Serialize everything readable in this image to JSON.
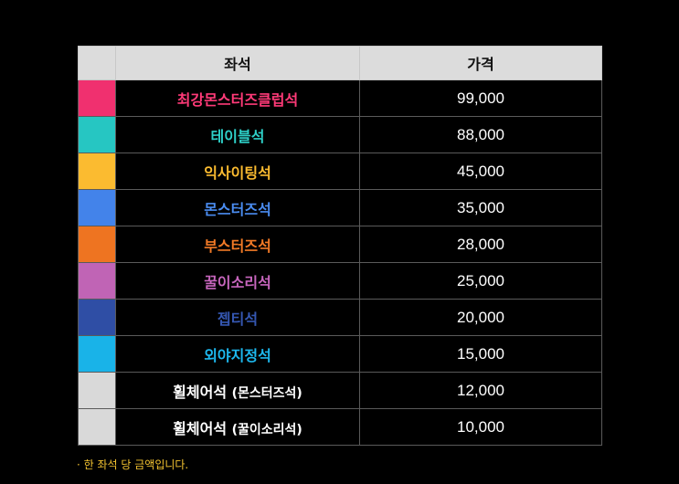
{
  "table": {
    "headers": {
      "seat": "좌석",
      "price": "가격"
    },
    "rows": [
      {
        "swatch_color": "#f0306f",
        "name": "최강몬스터즈클럽석",
        "sub": "",
        "name_color": "#ff3a78",
        "price": "99,000"
      },
      {
        "swatch_color": "#26c6c2",
        "name": "테이블석",
        "sub": "",
        "name_color": "#2ed0c8",
        "price": "88,000"
      },
      {
        "swatch_color": "#fbbb30",
        "name": "익사이팅석",
        "sub": "",
        "name_color": "#fbbb30",
        "price": "45,000"
      },
      {
        "swatch_color": "#4383ea",
        "name": "몬스터즈석",
        "sub": "",
        "name_color": "#4a8cf0",
        "price": "35,000"
      },
      {
        "swatch_color": "#ee7421",
        "name": "부스터즈석",
        "sub": "",
        "name_color": "#f27a26",
        "price": "28,000"
      },
      {
        "swatch_color": "#c064b5",
        "name": "꿀이소리석",
        "sub": "",
        "name_color": "#c766bd",
        "price": "25,000"
      },
      {
        "swatch_color": "#2f4ea5",
        "name": "젭티석",
        "sub": "",
        "name_color": "#3557b2",
        "price": "20,000"
      },
      {
        "swatch_color": "#19b3e8",
        "name": "외야지정석",
        "sub": "",
        "name_color": "#1db8ee",
        "price": "15,000"
      },
      {
        "swatch_color": "#d9d9d9",
        "name": "휠체어석",
        "sub": "(몬스터즈석)",
        "name_color": "#ffffff",
        "price": "12,000"
      },
      {
        "swatch_color": "#d9d9d9",
        "name": "휠체어석",
        "sub": "(꿀이소리석)",
        "name_color": "#ffffff",
        "price": "10,000"
      }
    ]
  },
  "footnote": "· 한 좌석 당 금액입니다."
}
